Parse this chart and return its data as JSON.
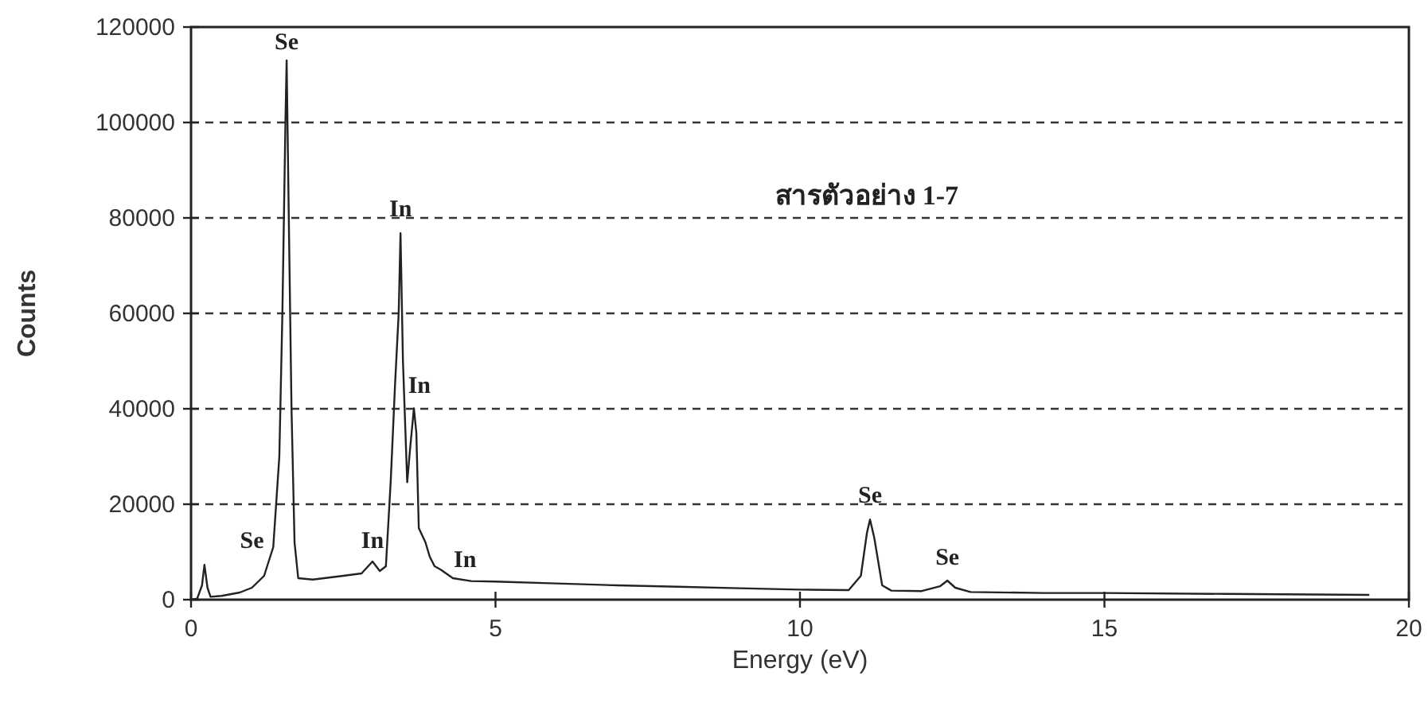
{
  "chart_data": {
    "type": "line",
    "xlabel": "Energy (eV)",
    "ylabel": "Counts",
    "series": [
      {
        "color": "#222222",
        "x": [
          0.0,
          0.1,
          0.18,
          0.22,
          0.27,
          0.32,
          0.5,
          0.8,
          1.0,
          1.2,
          1.35,
          1.45,
          1.5,
          1.55,
          1.57,
          1.6,
          1.65,
          1.7,
          1.76,
          2.0,
          2.5,
          2.8,
          2.98,
          3.1,
          3.2,
          3.28,
          3.35,
          3.41,
          3.44,
          3.48,
          3.55,
          3.6,
          3.66,
          3.7,
          3.74,
          3.85,
          3.92,
          4.0,
          4.1,
          4.3,
          4.6,
          5.0,
          6.0,
          7.0,
          8.0,
          9.0,
          10.0,
          10.8,
          11.0,
          11.1,
          11.15,
          11.22,
          11.35,
          11.5,
          12.0,
          12.3,
          12.42,
          12.55,
          12.8,
          14.0,
          15.0,
          17.0,
          19.35
        ],
        "values": [
          0,
          200,
          3000,
          7300,
          2500,
          600,
          800,
          1500,
          2500,
          5000,
          11000,
          30000,
          60000,
          100000,
          113000,
          85000,
          40000,
          12000,
          4500,
          4200,
          5000,
          5500,
          8000,
          6000,
          7000,
          25000,
          45000,
          60000,
          76800,
          50000,
          24600,
          32000,
          40100,
          35000,
          15000,
          12000,
          9000,
          7000,
          6300,
          4500,
          3900,
          3800,
          3400,
          3000,
          2700,
          2400,
          2100,
          2000,
          5000,
          14000,
          16800,
          13000,
          3000,
          1900,
          1800,
          2800,
          4000,
          2500,
          1600,
          1400,
          1400,
          1200,
          1000
        ]
      }
    ],
    "xlim": [
      0,
      20
    ],
    "xticks": [
      0,
      5,
      10,
      15,
      20
    ],
    "ylim": [
      0,
      120000
    ],
    "yticks": [
      0,
      20000,
      40000,
      60000,
      80000,
      100000,
      120000
    ],
    "grid": "y",
    "marker": "none",
    "line_style": "solid",
    "annotations": [
      {
        "text": "Se",
        "x": 1.57,
        "y": 113000
      },
      "Se",
      {
        "text": "In",
        "x": 3.44,
        "y": 78000
      },
      {
        "text": "In",
        "x": 3.75,
        "y": 41000
      },
      {
        "text": "In",
        "x": 2.98,
        "y": 8500
      },
      {
        "text": "In",
        "x": 4.5,
        "y": 4500
      },
      {
        "text": "Se",
        "x": 11.15,
        "y": 18000
      },
      {
        "text": "Se",
        "x": 12.42,
        "y": 5000
      },
      "สารตัวอย่าง 1-7"
    ]
  }
}
